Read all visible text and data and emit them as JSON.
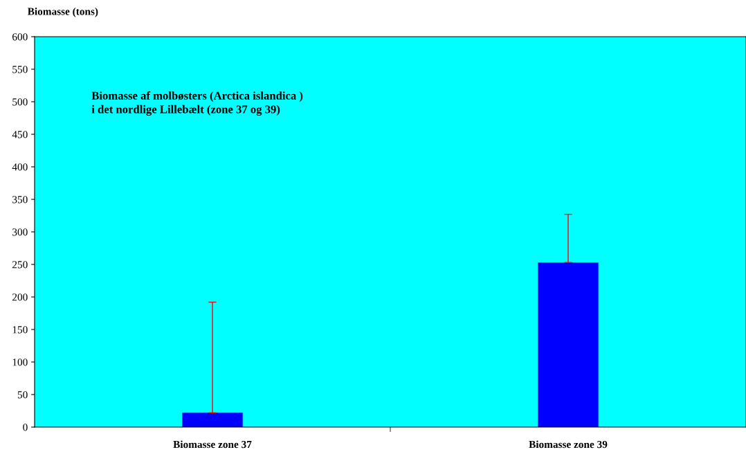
{
  "chart_data": {
    "type": "bar",
    "ylabel": "Biomasse (tons)",
    "categories": [
      "Biomasse zone 37",
      "Biomasse zone 39"
    ],
    "values": [
      22,
      253
    ],
    "errors": [
      [
        22,
        192
      ],
      [
        253,
        327
      ]
    ],
    "color": "#0000ff",
    "ylim": [
      0,
      600
    ],
    "yticks": [
      0,
      50,
      100,
      150,
      200,
      250,
      300,
      350,
      400,
      450,
      500,
      550,
      600
    ],
    "annotations": [
      "Biomasse af molbøsters (Arctica islandica )\ni det nordlige Lillebælt (zone 37 og 39)"
    ],
    "grid": false
  }
}
